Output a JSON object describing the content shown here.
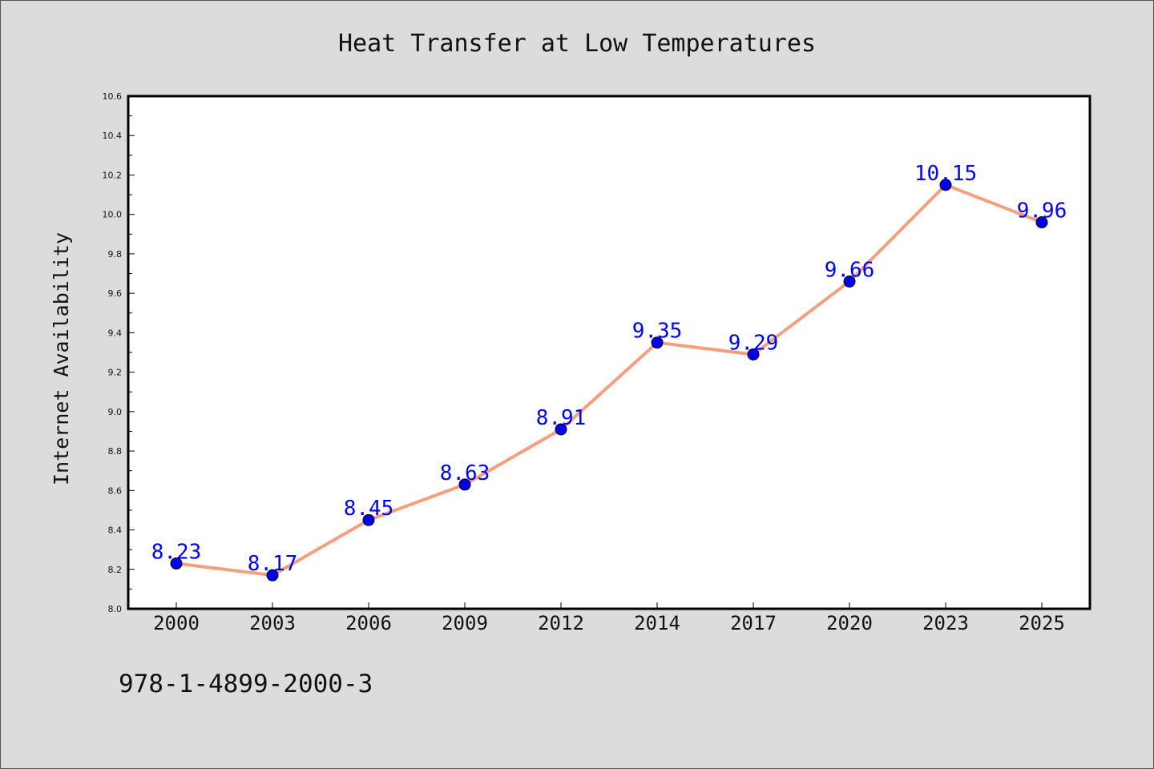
{
  "chart_data": {
    "type": "line",
    "title": "Heat Transfer at Low Temperatures",
    "xlabel": "",
    "ylabel": "Internet Availability",
    "categories": [
      "2000",
      "2003",
      "2006",
      "2009",
      "2012",
      "2014",
      "2017",
      "2020",
      "2023",
      "2025"
    ],
    "series": [
      {
        "values": [
          8.23,
          8.17,
          8.45,
          8.63,
          8.91,
          9.35,
          9.29,
          9.66,
          10.15,
          9.96
        ],
        "data_labels": [
          "8.23",
          "8.17",
          "8.45",
          "8.63",
          "8.91",
          "9.35",
          "9.29",
          "9.66",
          "10.15",
          "9.96"
        ],
        "line_color": "#f4a07f",
        "marker_color": "#0000ee"
      }
    ],
    "ylim": [
      8.0,
      10.6
    ],
    "yticks": [
      "8.0",
      "8.2",
      "8.4",
      "8.6",
      "8.8",
      "9.0",
      "9.2",
      "9.4",
      "9.6",
      "9.8",
      "10.0",
      "10.2",
      "10.4",
      "10.6"
    ],
    "label_color": "#0000ff",
    "grid": false,
    "legend": "none"
  },
  "footer": {
    "isbn": "978-1-4899-2000-3"
  },
  "colors": {
    "background": "#dcdcdc",
    "plot_background": "#ffffff"
  }
}
